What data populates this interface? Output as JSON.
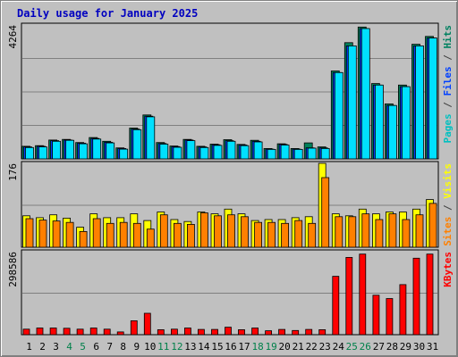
{
  "chart_data": {
    "type": "bar",
    "title": "Daily usage for January 2025",
    "categories": [
      "1",
      "2",
      "3",
      "4",
      "5",
      "6",
      "7",
      "8",
      "9",
      "10",
      "11",
      "12",
      "13",
      "14",
      "15",
      "16",
      "17",
      "18",
      "19",
      "20",
      "21",
      "22",
      "23",
      "24",
      "25",
      "26",
      "27",
      "28",
      "29",
      "30",
      "31"
    ],
    "weekend_days": [
      "4",
      "5",
      "11",
      "12",
      "18",
      "19",
      "25",
      "26"
    ],
    "panels": [
      {
        "id": "hits-files-pages",
        "ymax_label": "4264",
        "ymax": 4264,
        "legend": [
          {
            "text": "Pages",
            "color": "#00c0c0"
          },
          {
            "text": " / ",
            "color": "#404040"
          },
          {
            "text": "Files",
            "color": "#0040ff"
          },
          {
            "text": " / ",
            "color": "#404040"
          },
          {
            "text": "Hits",
            "color": "#008060"
          }
        ],
        "series": [
          {
            "name": "Hits",
            "color": "#00805a",
            "values": [
              400,
              420,
              600,
              620,
              520,
              680,
              560,
              350,
              980,
              1400,
              520,
              410,
              620,
              400,
              470,
              610,
              460,
              590,
              330,
              480,
              330,
              510,
              380,
              2800,
              3700,
              4200,
              2400,
              1750,
              2350,
              3650,
              3900
            ]
          },
          {
            "name": "Files",
            "color": "#0040ff",
            "values": [
              380,
              400,
              580,
              600,
              500,
              650,
              530,
              330,
              950,
              1360,
              490,
              390,
              600,
              380,
              450,
              580,
              440,
              560,
              310,
              460,
              310,
              350,
              350,
              2750,
              3600,
              4150,
              2350,
              1700,
              2300,
              3600,
              3850
            ]
          },
          {
            "name": "Pages",
            "color": "#00e0ff",
            "values": [
              360,
              380,
              560,
              590,
              480,
              630,
              510,
              310,
              930,
              1340,
              470,
              370,
              580,
              360,
              430,
              560,
              420,
              540,
              300,
              440,
              300,
              340,
              330,
              2750,
              3600,
              4150,
              2350,
              1700,
              2300,
              3600,
              3850
            ]
          }
        ]
      },
      {
        "id": "visits-sites",
        "ymax_label": "176",
        "ymax": 176,
        "legend": [
          {
            "text": "Sites",
            "color": "#ff8000"
          },
          {
            "text": " / ",
            "color": "#404040"
          },
          {
            "text": "Visits",
            "color": "#ffff00"
          }
        ],
        "series": [
          {
            "name": "Visits",
            "color": "#ffff00",
            "values": [
              66,
              62,
              68,
              61,
              42,
              70,
              62,
              62,
              70,
              56,
              74,
              58,
              54,
              74,
              70,
              80,
              70,
              56,
              58,
              58,
              62,
              64,
              176,
              70,
              66,
              80,
              70,
              74,
              74,
              80,
              100
            ]
          },
          {
            "name": "Sites",
            "color": "#ff8000",
            "values": [
              60,
              57,
              55,
              52,
              33,
              60,
              50,
              52,
              50,
              38,
              68,
              50,
              48,
              72,
              66,
              68,
              64,
              52,
              52,
              50,
              56,
              50,
              146,
              64,
              64,
              70,
              58,
              70,
              58,
              68,
              92
            ]
          }
        ]
      },
      {
        "id": "kbytes",
        "ymax_label": "298586",
        "ymax": 298586,
        "legend": [
          {
            "text": "KBytes",
            "color": "#ff0000"
          }
        ],
        "series": [
          {
            "name": "KBytes",
            "color": "#ff0000",
            "values": [
              20000,
              24000,
              24000,
              23000,
              20000,
              24000,
              20000,
              10000,
              50000,
              77000,
              18000,
              20000,
              24000,
              19000,
              19000,
              27000,
              18000,
              24000,
              14000,
              19000,
              15000,
              19000,
              18000,
              210000,
              278000,
              290000,
              142000,
              130000,
              180000,
              275000,
              290000
            ]
          }
        ]
      }
    ]
  }
}
